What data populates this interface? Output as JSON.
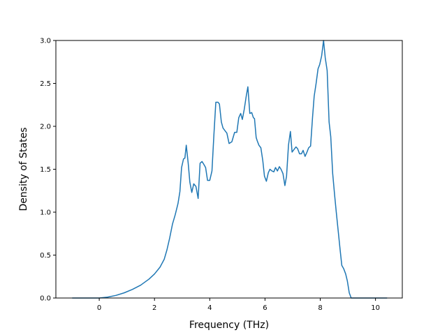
{
  "chart_data": {
    "type": "line",
    "title": "",
    "xlabel": "Frequency (THz)",
    "ylabel": "Density of States",
    "xlim": [
      -1.57,
      10.97
    ],
    "ylim": [
      0.0,
      3.0
    ],
    "xticks": [
      0,
      2,
      4,
      6,
      8,
      10
    ],
    "yticks": [
      0.0,
      0.5,
      1.0,
      1.5,
      2.0,
      2.5,
      3.0
    ],
    "xtick_labels": [
      "0",
      "2",
      "4",
      "6",
      "8",
      "10"
    ],
    "ytick_labels": [
      "0.0",
      "0.5",
      "1.0",
      "1.5",
      "2.0",
      "2.5",
      "3.0"
    ],
    "grid": false,
    "line_color": "#1f77b4",
    "series": [
      {
        "x": [
          -0.98,
          -0.5,
          0.0,
          0.3,
          0.6,
          0.9,
          1.2,
          1.5,
          1.8,
          2.0,
          2.2,
          2.35,
          2.45,
          2.55,
          2.65,
          2.75,
          2.85,
          2.92,
          2.98,
          3.05,
          3.1,
          3.15,
          3.22,
          3.28,
          3.35,
          3.42,
          3.5,
          3.58,
          3.65,
          3.72,
          3.78,
          3.85,
          3.92,
          4.0,
          4.08,
          4.15,
          4.22,
          4.3,
          4.35,
          4.42,
          4.48,
          4.55,
          4.62,
          4.7,
          4.8,
          4.9,
          4.98,
          5.05,
          5.12,
          5.18,
          5.25,
          5.32,
          5.38,
          5.45,
          5.52,
          5.58,
          5.62,
          5.68,
          5.72,
          5.78,
          5.85,
          5.92,
          5.98,
          6.05,
          6.12,
          6.18,
          6.25,
          6.32,
          6.38,
          6.45,
          6.52,
          6.58,
          6.65,
          6.72,
          6.78,
          6.85,
          6.92,
          6.98,
          7.05,
          7.12,
          7.18,
          7.25,
          7.32,
          7.38,
          7.45,
          7.52,
          7.58,
          7.65,
          7.72,
          7.78,
          7.85,
          7.92,
          7.98,
          8.05,
          8.12,
          8.18,
          8.25,
          8.32,
          8.38,
          8.45,
          8.52,
          8.58,
          8.65,
          8.72,
          8.78,
          8.85,
          8.92,
          8.98,
          9.05,
          9.12,
          9.18,
          9.25,
          9.32,
          9.38,
          9.45,
          9.5,
          9.6,
          10.0,
          10.42
        ],
        "y": [
          0.0,
          0.0,
          0.0,
          0.01,
          0.03,
          0.06,
          0.1,
          0.15,
          0.22,
          0.28,
          0.36,
          0.45,
          0.56,
          0.7,
          0.86,
          0.97,
          1.1,
          1.24,
          1.52,
          1.62,
          1.63,
          1.78,
          1.57,
          1.35,
          1.23,
          1.33,
          1.3,
          1.16,
          1.57,
          1.59,
          1.56,
          1.52,
          1.37,
          1.37,
          1.48,
          1.9,
          2.28,
          2.28,
          2.26,
          2.05,
          1.98,
          1.95,
          1.92,
          1.8,
          1.82,
          1.93,
          1.93,
          2.1,
          2.15,
          2.08,
          2.2,
          2.35,
          2.46,
          2.15,
          2.16,
          2.1,
          2.09,
          1.87,
          1.83,
          1.78,
          1.75,
          1.6,
          1.42,
          1.36,
          1.46,
          1.5,
          1.48,
          1.47,
          1.52,
          1.48,
          1.53,
          1.5,
          1.45,
          1.31,
          1.42,
          1.78,
          1.94,
          1.7,
          1.73,
          1.76,
          1.74,
          1.68,
          1.68,
          1.72,
          1.65,
          1.7,
          1.75,
          1.77,
          2.1,
          2.35,
          2.5,
          2.67,
          2.72,
          2.82,
          3.0,
          2.8,
          2.65,
          2.05,
          1.88,
          1.45,
          1.2,
          1.0,
          0.78,
          0.56,
          0.38,
          0.34,
          0.28,
          0.2,
          0.06,
          0.0,
          0.0,
          0.0,
          0.0,
          0.0,
          0.0,
          0.0,
          0.0,
          0.0,
          0.0
        ]
      }
    ]
  }
}
